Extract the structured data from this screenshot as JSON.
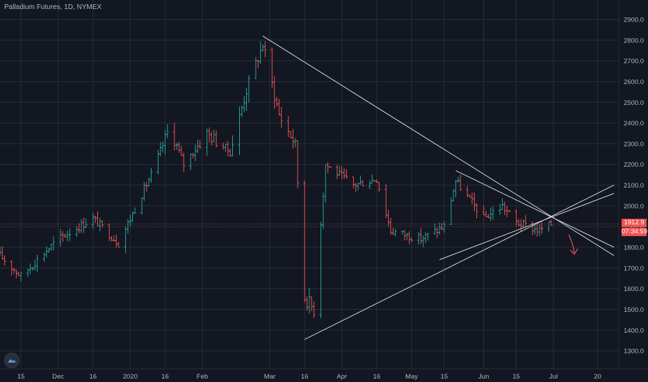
{
  "header": {
    "title": "Palladium Futures, 1D, NYMEX"
  },
  "price_badge": {
    "price": "1912.9",
    "countdown": "07:34:59"
  },
  "colors": {
    "background": "#131722",
    "grid": "#2a2e39",
    "up": "#26a69a",
    "down": "#ef5350",
    "trendline": "#d1d4dc",
    "axis_text": "#b2b5be",
    "arrow": "#ef5350"
  },
  "chart_data": {
    "type": "ohlc",
    "title": "Palladium Futures, 1D, NYMEX",
    "ylim": [
      1250,
      2960
    ],
    "y_ticks": [
      1300,
      1400,
      1500,
      1600,
      1700,
      1800,
      1900,
      2000,
      2100,
      2200,
      2300,
      2400,
      2500,
      2600,
      2700,
      2800,
      2900
    ],
    "y_tick_labels": [
      "1300.0",
      "1400.0",
      "1500.0",
      "1600.0",
      "1700.0",
      "1800.0",
      "1900.0",
      "2000.0",
      "2100.0",
      "2200.0",
      "2300.0",
      "2400.0",
      "2500.0",
      "2600.0",
      "2700.0",
      "2800.0",
      "2900.0"
    ],
    "x_ticks": [
      {
        "label": "15",
        "date": "2019-11-15"
      },
      {
        "label": "Dec",
        "date": "2019-12-01"
      },
      {
        "label": "16",
        "date": "2019-12-16"
      },
      {
        "label": "2020",
        "date": "2020-01-01"
      },
      {
        "label": "16",
        "date": "2020-01-16"
      },
      {
        "label": "Feb",
        "date": "2020-02-01"
      },
      {
        "label": "Mar",
        "date": "2020-03-01"
      },
      {
        "label": "16",
        "date": "2020-03-16"
      },
      {
        "label": "Apr",
        "date": "2020-04-01"
      },
      {
        "label": "16",
        "date": "2020-04-16"
      },
      {
        "label": "May",
        "date": "2020-05-01"
      },
      {
        "label": "15",
        "date": "2020-05-15"
      },
      {
        "label": "Jun",
        "date": "2020-06-01"
      },
      {
        "label": "15",
        "date": "2020-06-15"
      },
      {
        "label": "Jul",
        "date": "2020-07-01"
      },
      {
        "label": "20",
        "date": "2020-07-20"
      }
    ],
    "x_range": [
      "2019-11-06",
      "2020-07-27"
    ],
    "anchors": [
      {
        "date": "2019-11-06",
        "price": 1760
      },
      {
        "date": "2019-11-15",
        "price": 1660
      },
      {
        "date": "2019-12-01",
        "price": 1840
      },
      {
        "date": "2019-12-16",
        "price": 1940
      },
      {
        "date": "2019-12-27",
        "price": 1820
      },
      {
        "date": "2020-01-10",
        "price": 2150
      },
      {
        "date": "2020-01-18",
        "price": 2380
      },
      {
        "date": "2020-01-24",
        "price": 2200
      },
      {
        "date": "2020-02-03",
        "price": 2350
      },
      {
        "date": "2020-02-13",
        "price": 2260
      },
      {
        "date": "2020-02-20",
        "price": 2560
      },
      {
        "date": "2020-02-27",
        "price": 2780
      },
      {
        "date": "2020-03-05",
        "price": 2440
      },
      {
        "date": "2020-03-12",
        "price": 2300
      },
      {
        "date": "2020-03-16",
        "price": 1560
      },
      {
        "date": "2020-03-20",
        "price": 1500
      },
      {
        "date": "2020-03-25",
        "price": 2200
      },
      {
        "date": "2020-04-06",
        "price": 2100
      },
      {
        "date": "2020-04-16",
        "price": 2130
      },
      {
        "date": "2020-04-22",
        "price": 1880
      },
      {
        "date": "2020-05-05",
        "price": 1840
      },
      {
        "date": "2020-05-15",
        "price": 1900
      },
      {
        "date": "2020-05-20",
        "price": 2120
      },
      {
        "date": "2020-06-01",
        "price": 1940
      },
      {
        "date": "2020-06-09",
        "price": 2000
      },
      {
        "date": "2020-06-15",
        "price": 1920
      },
      {
        "date": "2020-06-25",
        "price": 1880
      },
      {
        "date": "2020-06-30",
        "price": 1912
      }
    ],
    "trendlines": [
      {
        "from": {
          "date": "2020-02-27",
          "price": 2820
        },
        "to": {
          "date": "2020-07-27",
          "price": 1760
        }
      },
      {
        "from": {
          "date": "2020-03-16",
          "price": 1355
        },
        "to": {
          "date": "2020-07-27",
          "price": 2100
        }
      },
      {
        "from": {
          "date": "2020-05-20",
          "price": 2170
        },
        "to": {
          "date": "2020-07-27",
          "price": 1800
        }
      },
      {
        "from": {
          "date": "2020-05-13",
          "price": 1740
        },
        "to": {
          "date": "2020-07-27",
          "price": 2060
        }
      }
    ],
    "last_price": 1912.9
  }
}
